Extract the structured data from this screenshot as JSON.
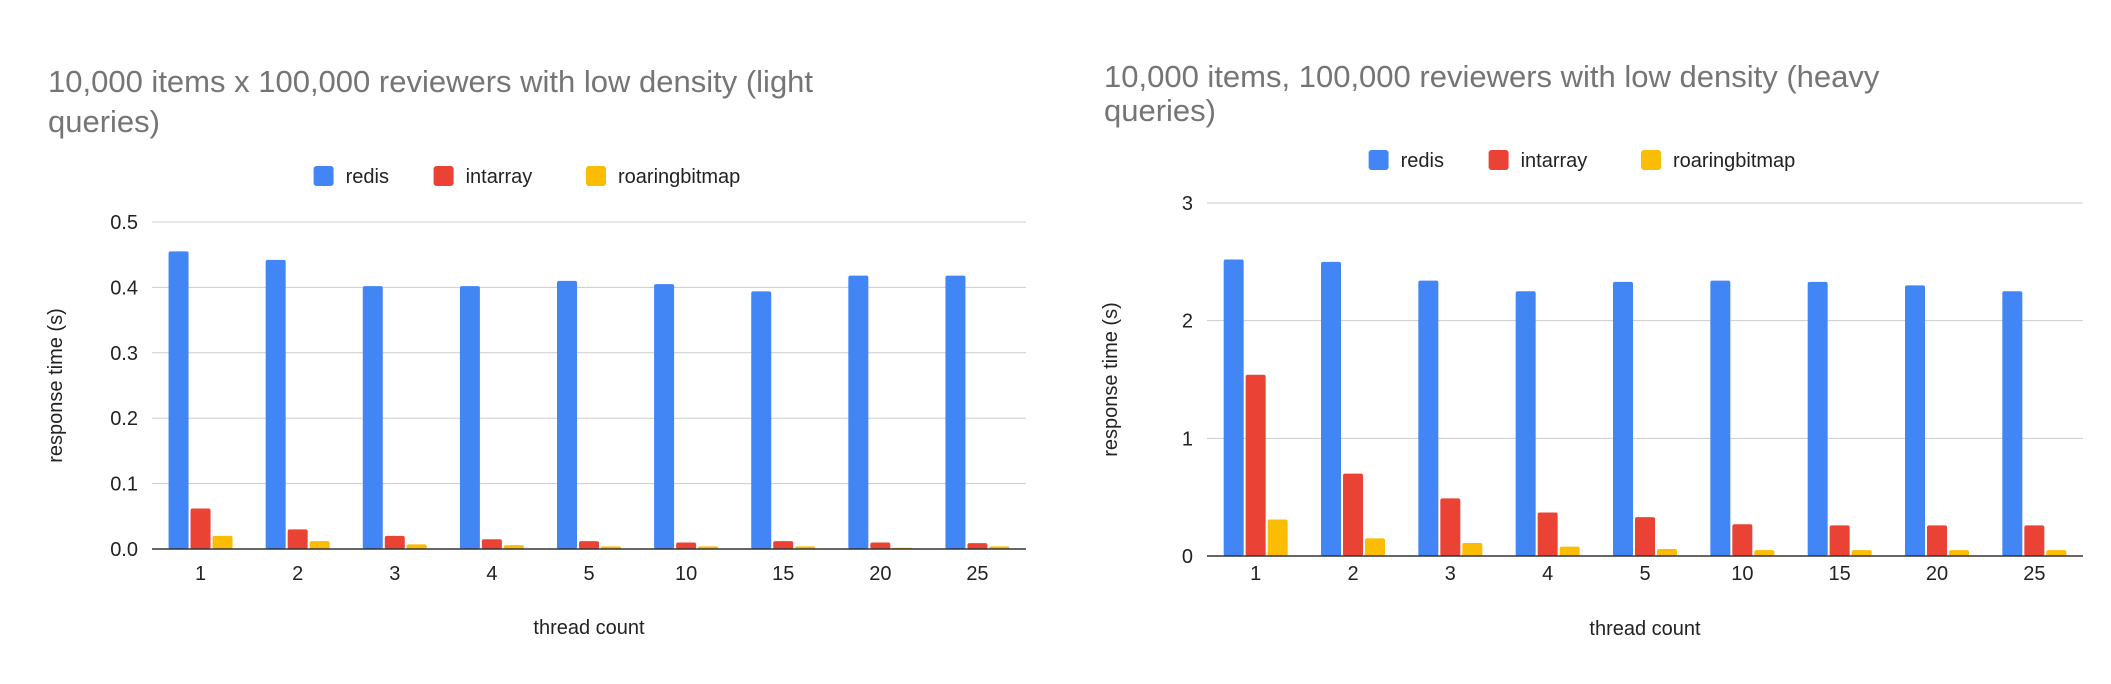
{
  "chart_data": [
    {
      "type": "bar",
      "title_lines": [
        "10,000 items x 100,000 reviewers with low density (light",
        "queries)"
      ],
      "xlabel": "thread count",
      "ylabel": "response time (s)",
      "categories": [
        "1",
        "2",
        "3",
        "4",
        "5",
        "10",
        "15",
        "20",
        "25"
      ],
      "ylim": [
        0,
        0.5
      ],
      "yticks": [
        "0.0",
        "0.1",
        "0.2",
        "0.3",
        "0.4",
        "0.5"
      ],
      "grid": true,
      "legend_position": "top-center",
      "series": [
        {
          "name": "redis",
          "color": "#4285F4",
          "values": [
            0.455,
            0.442,
            0.402,
            0.402,
            0.41,
            0.405,
            0.394,
            0.418,
            0.418
          ]
        },
        {
          "name": "intarray",
          "color": "#EA4335",
          "values": [
            0.062,
            0.03,
            0.02,
            0.015,
            0.012,
            0.01,
            0.012,
            0.01,
            0.009
          ]
        },
        {
          "name": "roaringbitmap",
          "color": "#FBBC04",
          "values": [
            0.02,
            0.012,
            0.007,
            0.006,
            0.004,
            0.004,
            0.004,
            0.002,
            0.004
          ]
        }
      ]
    },
    {
      "type": "bar",
      "title_lines": [
        "10,000 items, 100,000 reviewers with low density (heavy",
        "queries)"
      ],
      "xlabel": "thread count",
      "ylabel": "response time (s)",
      "categories": [
        "1",
        "2",
        "3",
        "4",
        "5",
        "10",
        "15",
        "20",
        "25"
      ],
      "ylim": [
        0,
        3
      ],
      "yticks": [
        "0",
        "1",
        "2",
        "3"
      ],
      "grid": true,
      "legend_position": "top-center",
      "series": [
        {
          "name": "redis",
          "color": "#4285F4",
          "values": [
            2.52,
            2.5,
            2.34,
            2.25,
            2.33,
            2.34,
            2.33,
            2.3,
            2.25
          ]
        },
        {
          "name": "intarray",
          "color": "#EA4335",
          "values": [
            1.54,
            0.7,
            0.49,
            0.37,
            0.33,
            0.27,
            0.26,
            0.26,
            0.26
          ]
        },
        {
          "name": "roaringbitmap",
          "color": "#FBBC04",
          "values": [
            0.31,
            0.15,
            0.11,
            0.08,
            0.06,
            0.05,
            0.05,
            0.05,
            0.05
          ]
        }
      ]
    }
  ]
}
